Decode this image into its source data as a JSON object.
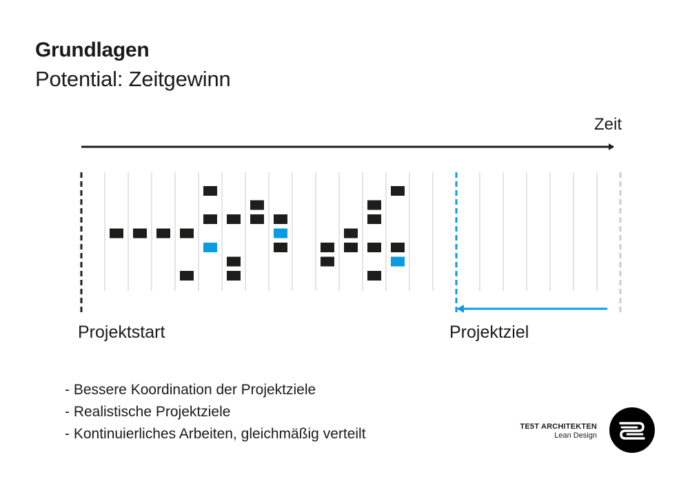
{
  "header": {
    "title": "Grundlagen",
    "subtitle": "Potential: Zeitgewinn"
  },
  "timeline": {
    "axis_label": "Zeit",
    "start_label": "Projektstart",
    "end_label": "Projektziel",
    "columns": 23,
    "goal_column": 16,
    "colors": {
      "task": "#1d1d1b",
      "highlight": "#0a9be0",
      "grid": "#c8c8c8",
      "future_end": "#cccccc"
    },
    "tasks": [
      {
        "col": 2,
        "row": 3,
        "type": "task"
      },
      {
        "col": 3,
        "row": 3,
        "type": "task"
      },
      {
        "col": 4,
        "row": 3,
        "type": "task"
      },
      {
        "col": 5,
        "row": 3,
        "type": "task"
      },
      {
        "col": 5,
        "row": 6,
        "type": "task"
      },
      {
        "col": 6,
        "row": 0,
        "type": "task"
      },
      {
        "col": 6,
        "row": 2,
        "type": "task"
      },
      {
        "col": 6,
        "row": 4,
        "type": "highlight"
      },
      {
        "col": 7,
        "row": 2,
        "type": "task"
      },
      {
        "col": 7,
        "row": 5,
        "type": "task"
      },
      {
        "col": 7,
        "row": 6,
        "type": "task"
      },
      {
        "col": 8,
        "row": 1,
        "type": "task"
      },
      {
        "col": 8,
        "row": 2,
        "type": "task"
      },
      {
        "col": 9,
        "row": 2,
        "type": "task"
      },
      {
        "col": 9,
        "row": 3,
        "type": "highlight"
      },
      {
        "col": 9,
        "row": 4,
        "type": "task"
      },
      {
        "col": 11,
        "row": 4,
        "type": "task"
      },
      {
        "col": 11,
        "row": 5,
        "type": "task"
      },
      {
        "col": 12,
        "row": 3,
        "type": "task"
      },
      {
        "col": 12,
        "row": 4,
        "type": "task"
      },
      {
        "col": 13,
        "row": 1,
        "type": "task"
      },
      {
        "col": 13,
        "row": 2,
        "type": "task"
      },
      {
        "col": 13,
        "row": 4,
        "type": "task"
      },
      {
        "col": 13,
        "row": 6,
        "type": "task"
      },
      {
        "col": 14,
        "row": 0,
        "type": "task"
      },
      {
        "col": 14,
        "row": 4,
        "type": "task"
      },
      {
        "col": 14,
        "row": 5,
        "type": "highlight"
      }
    ]
  },
  "bullets": [
    "Bessere Koordination der Projektziele",
    "Realistische Projektziele",
    "Kontinuierliches Arbeiten, gleichmäßig verteilt"
  ],
  "brand": {
    "name": "TE5T ARCHITEKTEN",
    "tagline": "Lean Design",
    "logo_icon": "te5t-logo-icon"
  }
}
